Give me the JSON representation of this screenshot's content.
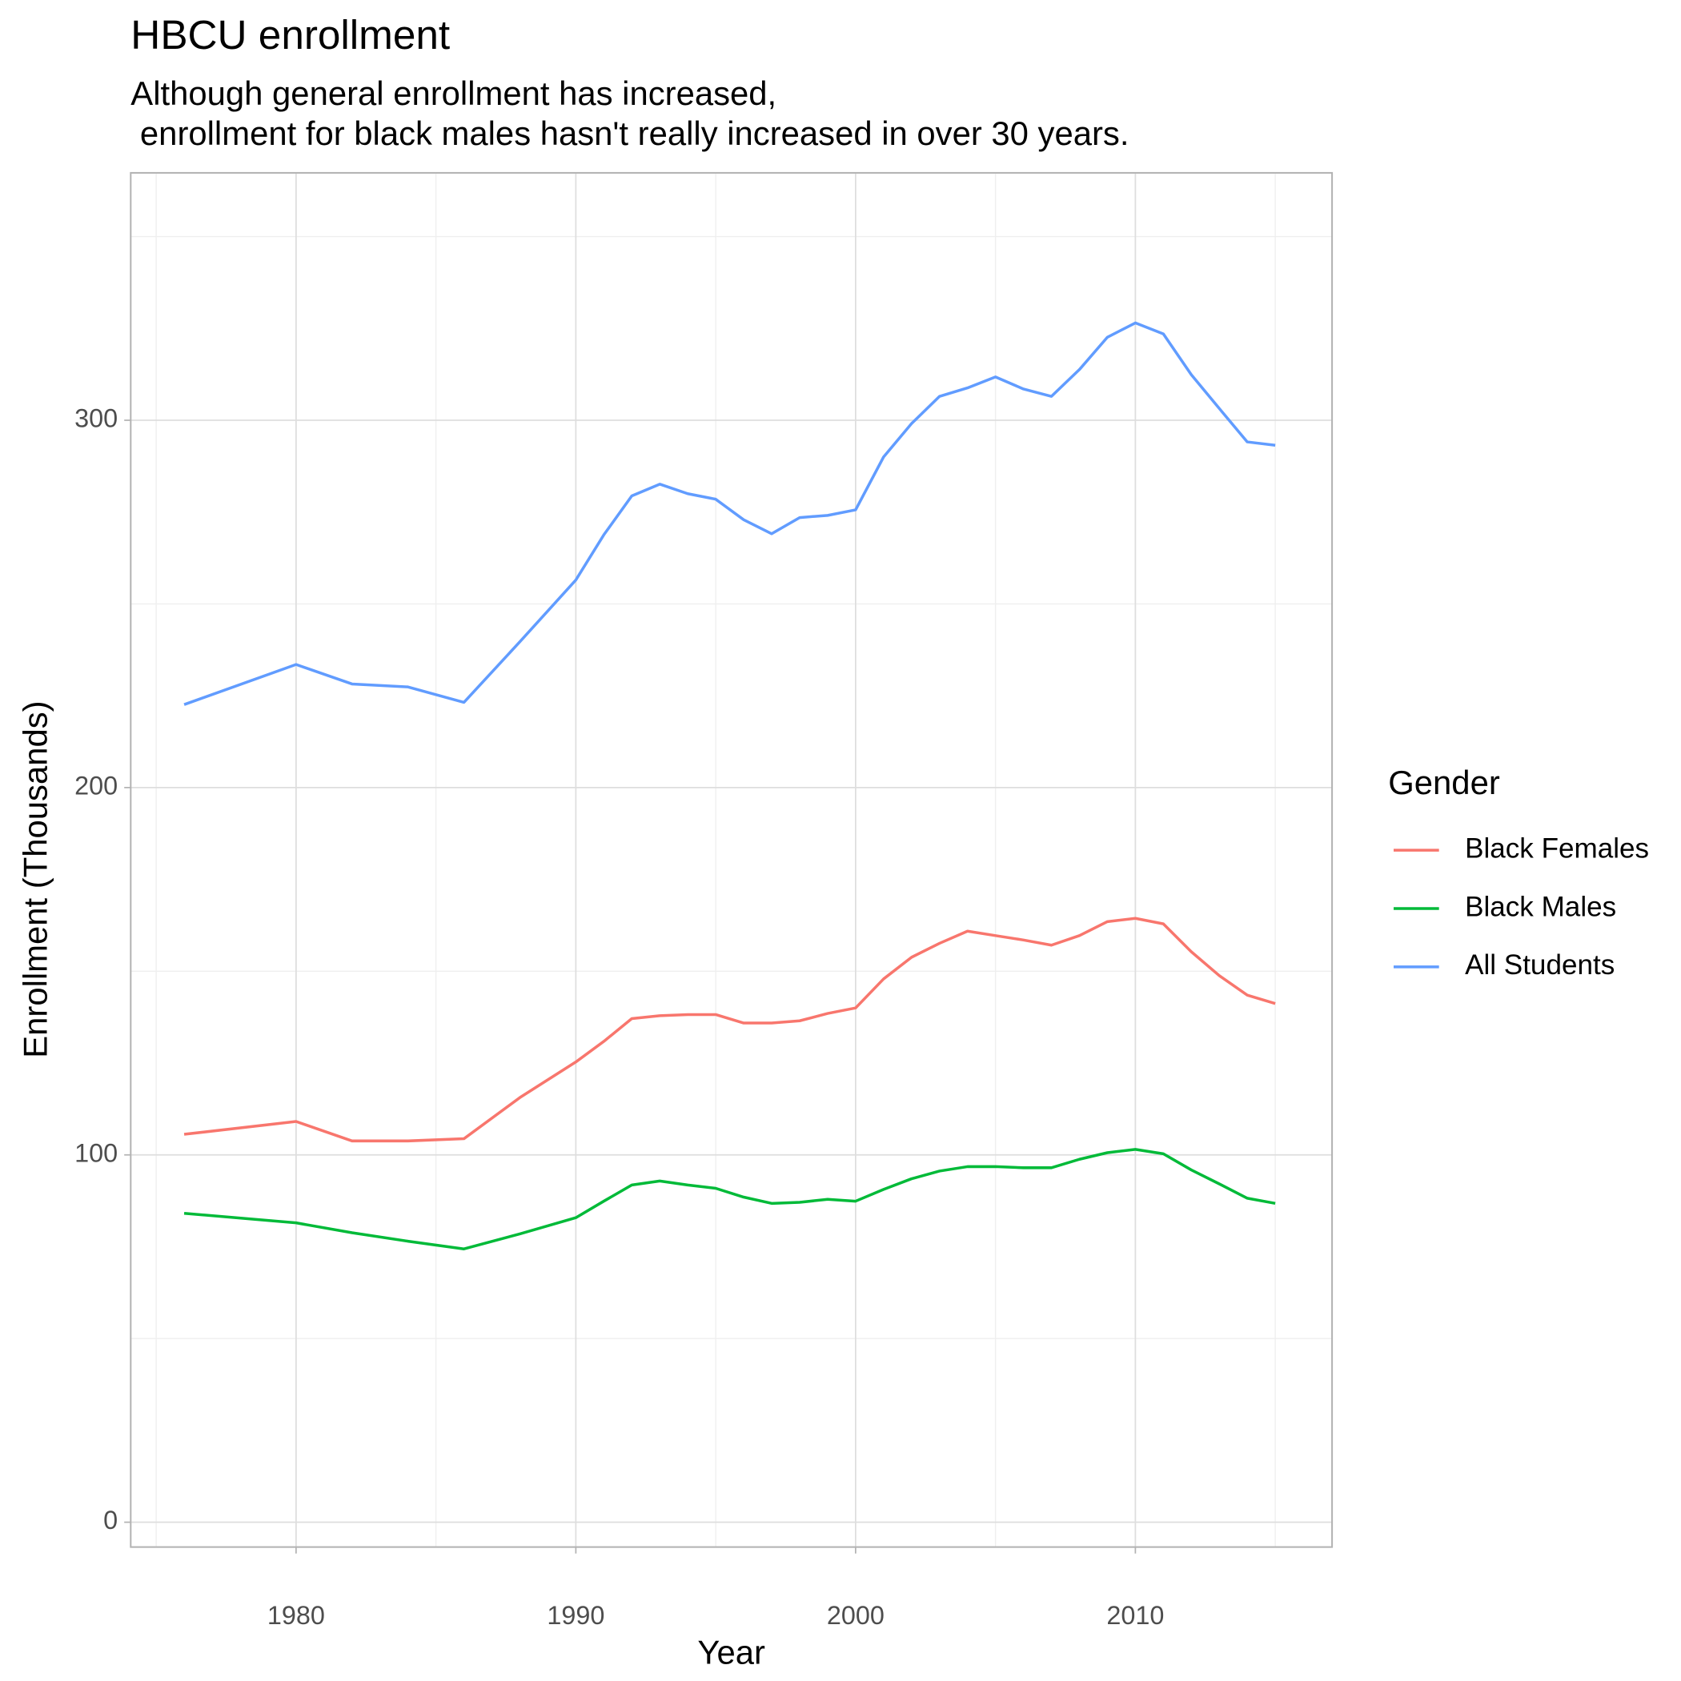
{
  "chart_data": {
    "type": "line",
    "title": "HBCU enrollment",
    "subtitle": [
      "Although general enrollment has increased,",
      " enrollment for black males hasn't really increased in over 30 years."
    ],
    "x_label": "Year",
    "y_label": "Enrollment (Thousands)",
    "legend_title": "Gender",
    "legend_position": "right",
    "grid": true,
    "x": [
      1976,
      1980,
      1982,
      1984,
      1986,
      1988,
      1990,
      1991,
      1992,
      1993,
      1994,
      1995,
      1996,
      1997,
      1998,
      1999,
      2000,
      2001,
      2002,
      2003,
      2004,
      2005,
      2006,
      2007,
      2008,
      2009,
      2010,
      2011,
      2012,
      2013,
      2014,
      2015
    ],
    "series": [
      {
        "name": "Black Females",
        "color": "#F8766D",
        "values": [
          105.6,
          109.1,
          103.8,
          103.8,
          104.4,
          115.6,
          125.3,
          130.9,
          137.1,
          137.9,
          138.2,
          138.2,
          135.9,
          135.9,
          136.5,
          138.5,
          140,
          147.9,
          153.8,
          157.6,
          160.9,
          159.7,
          158.5,
          157.1,
          159.7,
          163.5,
          164.4,
          162.9,
          155.3,
          148.8,
          143.5,
          141.2
        ]
      },
      {
        "name": "Black Males",
        "color": "#00BA38",
        "values": [
          84.1,
          81.5,
          78.8,
          76.5,
          74.4,
          78.5,
          82.9,
          87.4,
          91.8,
          92.9,
          91.8,
          90.9,
          88.5,
          86.8,
          87.1,
          87.9,
          87.4,
          90.6,
          93.5,
          95.6,
          96.8,
          96.8,
          96.5,
          96.5,
          98.8,
          100.6,
          101.5,
          100.3,
          95.9,
          92.1,
          88.2,
          86.8
        ]
      },
      {
        "name": "All Students",
        "color": "#619CFF",
        "values": [
          222.6,
          233.5,
          228.2,
          227.4,
          223.2,
          239.7,
          256.5,
          268.8,
          279.4,
          282.6,
          280,
          278.5,
          272.9,
          269.1,
          273.5,
          274.1,
          275.6,
          290,
          299.1,
          306.5,
          308.8,
          311.8,
          308.5,
          306.5,
          313.8,
          322.6,
          326.5,
          323.5,
          312.4,
          303.2,
          294.1,
          293.2
        ]
      }
    ],
    "xlim": [
      1974.09,
      2017.03
    ],
    "xticks": [
      1980,
      1990,
      2000,
      2010
    ],
    "x_minor_grid": [
      1975,
      1985,
      1995,
      2005,
      2015
    ],
    "ylim": [
      -6.76,
      367.35
    ],
    "yticks": [
      0,
      100,
      200,
      300
    ],
    "y_minor_grid": [
      50,
      150,
      250,
      350
    ]
  }
}
